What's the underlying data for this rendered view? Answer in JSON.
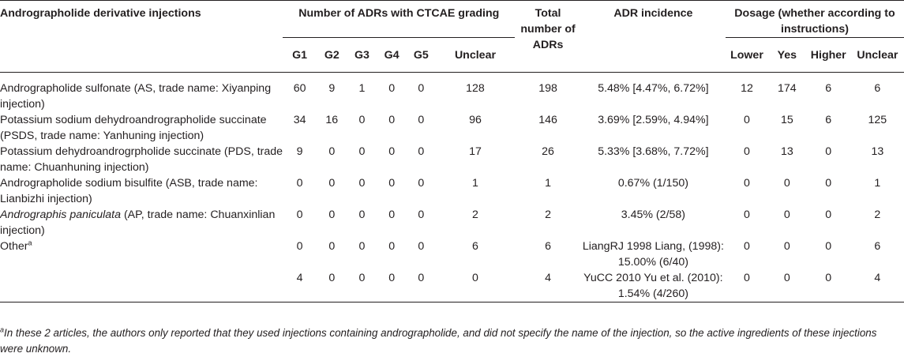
{
  "header": {
    "derivative": "Andrographolide derivative injections",
    "adrs_ctcae": "Number of ADRs with CTCAE grading",
    "total": "Total number of ADRs",
    "incidence": "ADR incidence",
    "dosage": "Dosage (whether according to instructions)",
    "grades": [
      "G1",
      "G2",
      "G3",
      "G4",
      "G5",
      "Unclear"
    ],
    "dosage_cols": [
      "Lower",
      "Yes",
      "Higher",
      "Unclear"
    ]
  },
  "rows": [
    {
      "name": "Andrographolide sulfonate (AS, trade name: Xiyanping injection)",
      "name_italic": "",
      "grades": [
        "60",
        "9",
        "1",
        "0",
        "0",
        "128"
      ],
      "total": "198",
      "incidence": "5.48% [4.47%, 6.72%]",
      "dosage": [
        "12",
        "174",
        "6",
        "6"
      ]
    },
    {
      "name": "Potassium sodium dehydroandrographolide succinate (PSDS, trade name: Yanhuning injection)",
      "name_italic": "",
      "grades": [
        "34",
        "16",
        "0",
        "0",
        "0",
        "96"
      ],
      "total": "146",
      "incidence": "3.69% [2.59%, 4.94%]",
      "dosage": [
        "0",
        "15",
        "6",
        "125"
      ]
    },
    {
      "name": "Potassium dehydroandrogrpholide succinate (PDS, trade name: Chuanhuning injection)",
      "name_italic": "",
      "grades": [
        "9",
        "0",
        "0",
        "0",
        "0",
        "17"
      ],
      "total": "26",
      "incidence": "5.33% [3.68%, 7.72%]",
      "dosage": [
        "0",
        "13",
        "0",
        "13"
      ]
    },
    {
      "name": "Andrographolide sodium bisulfite (ASB, trade name: Lianbizhi injection)",
      "name_italic": "",
      "grades": [
        "0",
        "0",
        "0",
        "0",
        "0",
        "1"
      ],
      "total": "1",
      "incidence": "0.67% (1/150)",
      "dosage": [
        "0",
        "0",
        "0",
        "1"
      ]
    },
    {
      "name": " (AP, trade name: Chuanxinlian injection)",
      "name_italic": "Andrographis paniculata",
      "grades": [
        "0",
        "0",
        "0",
        "0",
        "0",
        "2"
      ],
      "total": "2",
      "incidence": "3.45% (2/58)",
      "dosage": [
        "0",
        "0",
        "0",
        "2"
      ]
    },
    {
      "name": "Other",
      "name_italic": "",
      "sup": "a",
      "grades": [
        "0",
        "0",
        "0",
        "0",
        "0",
        "6"
      ],
      "total": "6",
      "incidence": "LiangRJ 1998 Liang, (1998): 15.00% (6/40)",
      "dosage": [
        "0",
        "0",
        "0",
        "6"
      ]
    },
    {
      "name": "",
      "name_italic": "",
      "grades": [
        "4",
        "0",
        "0",
        "0",
        "0",
        "0"
      ],
      "total": "4",
      "incidence": "YuCC 2010 Yu et al. (2010): 1.54% (4/260)",
      "dosage": [
        "0",
        "0",
        "0",
        "4"
      ]
    }
  ],
  "footnote": {
    "mark": "a",
    "text": "In these 2 articles, the authors only reported that they used injections containing andrographolide, and did not specify the name of the injection, so the active ingredients of these injections were unknown."
  }
}
